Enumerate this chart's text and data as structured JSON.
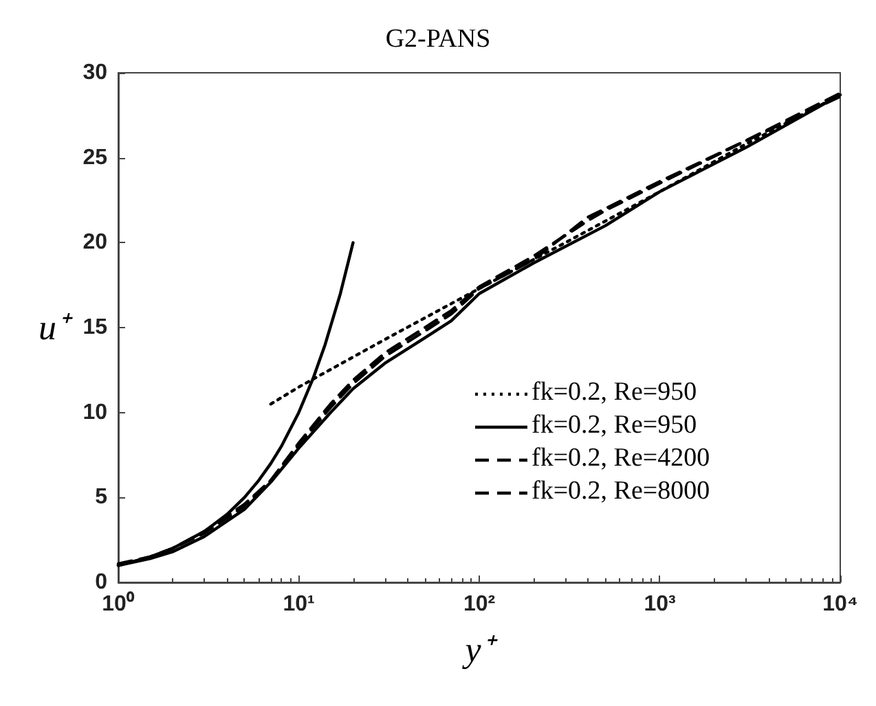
{
  "chart_data": {
    "type": "line",
    "title": "G2-PANS",
    "xlabel": "y⁺",
    "ylabel": "u⁺",
    "log": "x",
    "xlim": [
      1,
      10000
    ],
    "ylim": [
      0,
      30
    ],
    "xticks": [
      {
        "value": 1,
        "label": "10⁰"
      },
      {
        "value": 10,
        "label": "10¹"
      },
      {
        "value": 100,
        "label": "10²"
      },
      {
        "value": 1000,
        "label": "10³"
      },
      {
        "value": 10000,
        "label": "10⁴"
      }
    ],
    "yticks": [
      0,
      5,
      10,
      15,
      20,
      25,
      30
    ],
    "grid": false,
    "legend": "right",
    "marker": "none",
    "series": [
      {
        "name": "fk=0.2, Re=950",
        "color": "#000000",
        "line_style": "dotted",
        "x": [
          7,
          10,
          30,
          100,
          300,
          1000,
          3000,
          10000
        ],
        "values": [
          10.5,
          11.5,
          14.3,
          17.3,
          20.0,
          23.0,
          25.8,
          28.7
        ]
      },
      {
        "name": "fk=0.2, Re=950",
        "color": "#000000",
        "line_style": "solid",
        "x": [
          1,
          1.5,
          2,
          3,
          5,
          7,
          10,
          15,
          20,
          30,
          50,
          70,
          100,
          200,
          500,
          1000,
          3000,
          10000
        ],
        "values": [
          1.0,
          1.4,
          1.8,
          2.7,
          4.3,
          5.9,
          7.9,
          10.0,
          11.4,
          12.9,
          14.4,
          15.4,
          17.0,
          18.8,
          21.0,
          23.0,
          25.6,
          28.7
        ]
      },
      {
        "name": "fk=0.2, Re=4200",
        "color": "#000000",
        "line_style": "dashed",
        "x": [
          1,
          1.5,
          2,
          3,
          5,
          7,
          10,
          15,
          20,
          30,
          50,
          70,
          100,
          200,
          400,
          500,
          1000,
          3000,
          10000
        ],
        "values": [
          1.0,
          1.5,
          2.0,
          2.9,
          4.5,
          6.0,
          8.1,
          10.3,
          11.7,
          13.3,
          14.8,
          15.8,
          17.3,
          19.0,
          21.5,
          22.0,
          23.6,
          26.0,
          28.6
        ]
      },
      {
        "name": "fk=0.2, Re=8000",
        "color": "#000000",
        "line_style": "dashed",
        "x": [
          1,
          1.5,
          2,
          3,
          5,
          7,
          10,
          15,
          20,
          30,
          50,
          70,
          100,
          200,
          400,
          500,
          1000,
          3000,
          10000
        ],
        "values": [
          1.1,
          1.5,
          2.0,
          3.0,
          4.6,
          6.0,
          8.2,
          10.5,
          11.9,
          13.5,
          15.0,
          16.0,
          17.4,
          19.2,
          21.3,
          21.9,
          23.5,
          26.0,
          28.8
        ]
      },
      {
        "color": "#000000",
        "line_style": "solid",
        "x": [
          1,
          1.5,
          2,
          3,
          4,
          5,
          6,
          7,
          8,
          10,
          12,
          14,
          17,
          20
        ],
        "values": [
          1,
          1.5,
          2,
          3,
          4,
          5,
          6,
          7,
          8,
          10,
          12,
          14,
          17,
          20
        ]
      }
    ]
  }
}
